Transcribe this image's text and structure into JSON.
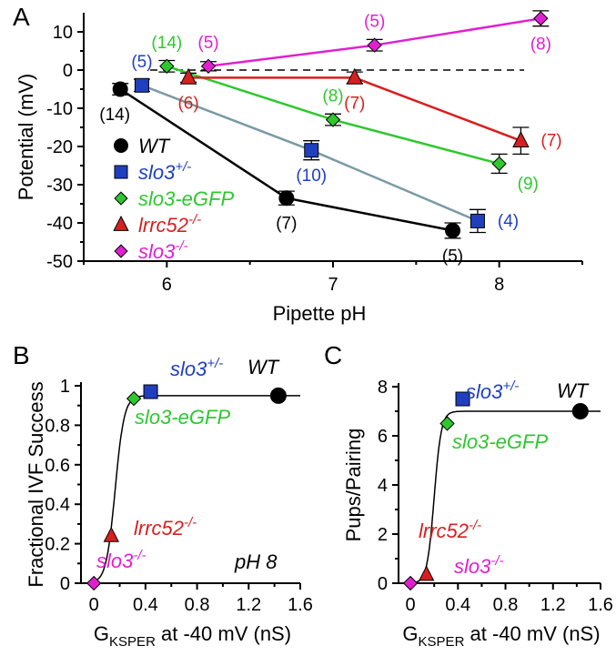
{
  "chart_data": [
    {
      "panel": "A",
      "type": "line",
      "xlabel": "Pipette pH",
      "ylabel": "Potential (mV)",
      "xlim": [
        5.5,
        8.5
      ],
      "ylim": [
        -50,
        15
      ],
      "xticks": [
        "6",
        "7",
        "8"
      ],
      "yticks": [
        "10",
        "0",
        "-10",
        "-20",
        "-30",
        "-40",
        "-50"
      ],
      "reference_line": 0,
      "series": [
        {
          "name": "WT",
          "color": "#000000",
          "marker": "circle",
          "x": [
            5.72,
            6.72,
            7.72
          ],
          "y": [
            -5,
            -33.5,
            -42
          ],
          "err": [
            1.5,
            1.8,
            2
          ],
          "n": [
            "(14)",
            "(7)",
            "(5)"
          ],
          "n_pos": [
            "below-left",
            "below",
            "below"
          ]
        },
        {
          "name": "slo3+/-",
          "label_main": "slo3",
          "label_sup": "+/-",
          "color": "#1f3fbf",
          "marker": "square",
          "x": [
            5.85,
            6.87,
            7.87
          ],
          "y": [
            -4,
            -21,
            -39.5
          ],
          "err": [
            1.6,
            2.5,
            3
          ],
          "n": [
            "(5)",
            "(10)",
            "(4)"
          ],
          "n_pos": [
            "above",
            "below",
            "right"
          ]
        },
        {
          "name": "slo3-eGFP",
          "color": "#2ec82e",
          "marker": "diamond",
          "x": [
            6.0,
            7.0,
            8.0
          ],
          "y": [
            1,
            -13,
            -24.5
          ],
          "err": [
            1.5,
            1.5,
            2.5
          ],
          "n": [
            "(14)",
            "(8)",
            "(9)"
          ],
          "n_pos": [
            "above",
            "above",
            "below-right"
          ]
        },
        {
          "name": "lrrc52-/-",
          "label_main": "lrrc52",
          "label_sup": "-/-",
          "color": "#d62020",
          "marker": "triangle",
          "x": [
            6.13,
            7.13,
            8.13
          ],
          "y": [
            -2,
            -2,
            -18.5
          ],
          "err": [
            1.2,
            1.5,
            3.5
          ],
          "n": [
            "(6)",
            "(7)",
            "(7)"
          ],
          "n_pos": [
            "below",
            "below",
            "right"
          ]
        },
        {
          "name": "slo3-/-",
          "label_main": "slo3",
          "label_sup": "-/-",
          "color": "#e020d0",
          "marker": "diamond",
          "x": [
            6.25,
            7.25,
            8.25
          ],
          "y": [
            1,
            6.5,
            13.5
          ],
          "err": [
            1.2,
            1.5,
            2
          ],
          "n": [
            "(5)",
            "(5)",
            "(8)"
          ],
          "n_pos": [
            "above",
            "above",
            "below"
          ]
        }
      ]
    },
    {
      "panel": "B",
      "type": "scatter",
      "xlabel_main": "G",
      "xlabel_sub": "KSPER",
      "xlabel_rest": " at -40 mV (nS)",
      "ylabel": "Fractional IVF Success",
      "xlim": [
        -0.1,
        1.6
      ],
      "ylim": [
        0,
        1
      ],
      "xticks": [
        "0",
        "0.4",
        "0.8",
        "1.2",
        "1.6"
      ],
      "yticks": [
        "0",
        "0.2",
        "0.4",
        "0.6",
        "0.8",
        "1"
      ],
      "annotation": "pH 8",
      "points": [
        {
          "name": "WT",
          "x": 1.43,
          "y": 0.95
        },
        {
          "name": "slo3+/-",
          "x": 0.44,
          "y": 0.97
        },
        {
          "name": "slo3-eGFP",
          "x": 0.31,
          "y": 0.935
        },
        {
          "name": "lrrc52-/-",
          "x": 0.135,
          "y": 0.24
        },
        {
          "name": "slo3-/-",
          "x": 0.0,
          "y": 0.0
        }
      ],
      "fit": {
        "top": 0.95,
        "x_half": 0.165,
        "slope": 0.035
      }
    },
    {
      "panel": "C",
      "type": "scatter",
      "xlabel_main": "G",
      "xlabel_sub": "KSPER",
      "xlabel_rest": " at -40 mV (nS)",
      "ylabel": "Pups/Pairing",
      "xlim": [
        -0.1,
        1.6
      ],
      "ylim": [
        0,
        8
      ],
      "xticks": [
        "0",
        "0.4",
        "0.8",
        "1.2",
        "1.6"
      ],
      "yticks": [
        "0",
        "2",
        "4",
        "6",
        "8"
      ],
      "points": [
        {
          "name": "WT",
          "x": 1.43,
          "y": 7.0
        },
        {
          "name": "slo3+/-",
          "x": 0.44,
          "y": 7.5
        },
        {
          "name": "slo3-eGFP",
          "x": 0.31,
          "y": 6.5
        },
        {
          "name": "lrrc52-/-",
          "x": 0.135,
          "y": 0.35
        },
        {
          "name": "slo3-/-",
          "x": 0.0,
          "y": 0.0
        }
      ],
      "fit": {
        "top": 7.0,
        "x_half": 0.2,
        "slope": 0.03
      }
    }
  ]
}
